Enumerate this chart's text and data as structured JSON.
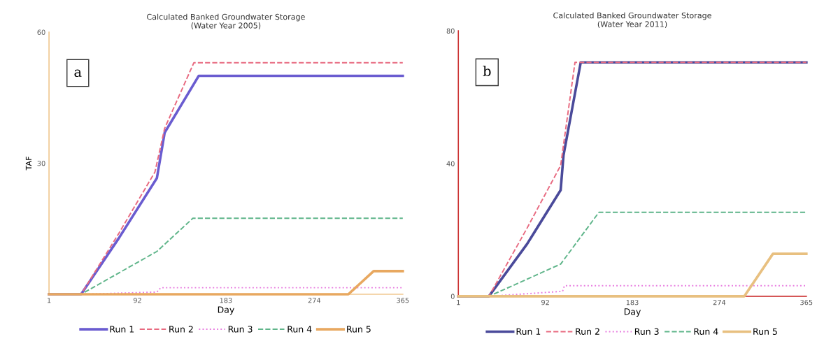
{
  "chart_data": [
    {
      "type": "line",
      "title": "Calculated Banked Groundwater Storage\n(Water Year 2005)",
      "xlabel": "Day",
      "ylabel": "TAF",
      "annotations": [
        "a"
      ],
      "xlim": [
        1,
        365
      ],
      "xticks": [
        1,
        92,
        183,
        274,
        365
      ],
      "ylim": [
        0,
        60
      ],
      "yticks": [
        30,
        60
      ],
      "legend": "bottom",
      "grid": false,
      "series": [
        {
          "name": "Run 1",
          "color": "#6a5cd0",
          "line_style": "solid",
          "x": [
            1,
            34,
            73,
            112,
            120,
            155,
            365
          ],
          "values": [
            0,
            0,
            12.9,
            26.6,
            37,
            50,
            50
          ]
        },
        {
          "name": "Run 2",
          "color": "#e86a80",
          "line_style": "dashed",
          "x": [
            1,
            34,
            73,
            110,
            120,
            150,
            365
          ],
          "values": [
            0,
            0,
            14,
            28,
            38,
            53,
            53
          ]
        },
        {
          "name": "Run 3",
          "color": "#e87de0",
          "line_style": "dotted",
          "x": [
            1,
            34,
            112,
            116,
            365
          ],
          "values": [
            0,
            0,
            0.5,
            1.5,
            1.5
          ]
        },
        {
          "name": "Run 4",
          "color": "#5fb58a",
          "line_style": "dashed",
          "x": [
            1,
            34,
            112,
            149,
            365
          ],
          "values": [
            0,
            0,
            9.8,
            17.4,
            17.4
          ]
        },
        {
          "name": "Run 5",
          "color": "#e8a860",
          "line_style": "solid",
          "x": [
            1,
            309,
            335,
            365
          ],
          "values": [
            0,
            0,
            5.3,
            5.3
          ]
        }
      ]
    },
    {
      "type": "line",
      "title": "Calculated Banked Groundwater Storage\n(Water Year 2011)",
      "xlabel": "Day",
      "annotations": [
        "b"
      ],
      "xlim": [
        1,
        365
      ],
      "xticks": [
        1,
        92,
        183,
        274,
        365
      ],
      "ylim": [
        0,
        80
      ],
      "yticks": [
        0,
        40,
        80
      ],
      "legend": "bottom",
      "grid": false,
      "series": [
        {
          "name": "Run 1",
          "color": "#4a4a9a",
          "line_style": "solid",
          "x": [
            1,
            33,
            73,
            108,
            111,
            129,
            365
          ],
          "values": [
            0,
            0,
            15.8,
            32,
            42.5,
            70.5,
            70.5
          ]
        },
        {
          "name": "Run 2",
          "color": "#e86a80",
          "line_style": "dashed",
          "x": [
            1,
            33,
            73,
            108,
            123,
            365
          ],
          "values": [
            0,
            0,
            20.6,
            39.4,
            70.5,
            70.5
          ]
        },
        {
          "name": "Run 3",
          "color": "#e87de0",
          "line_style": "dotted",
          "x": [
            1,
            33,
            110,
            112,
            365
          ],
          "values": [
            0,
            0,
            1.5,
            3.2,
            3.2
          ]
        },
        {
          "name": "Run 4",
          "color": "#5fb58a",
          "line_style": "dashed",
          "x": [
            1,
            33,
            108,
            148,
            365
          ],
          "values": [
            0,
            0,
            9.7,
            25.3,
            25.3
          ]
        },
        {
          "name": "Run 5",
          "color": "#e8c080",
          "line_style": "solid",
          "x": [
            1,
            300,
            330,
            365
          ],
          "values": [
            0,
            0,
            12.8,
            12.8
          ]
        }
      ]
    }
  ]
}
